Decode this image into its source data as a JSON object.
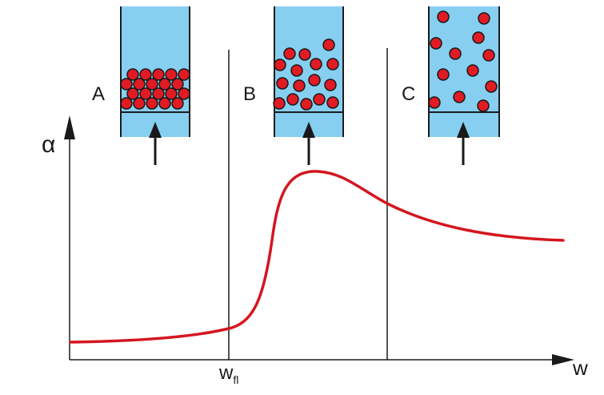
{
  "labels": {
    "y_axis": "α",
    "x_axis": "w",
    "wfl_main": "w",
    "wfl_sub": "fl"
  },
  "panels": [
    {
      "id": "A",
      "label": "A",
      "state": "fixed bed"
    },
    {
      "id": "B",
      "label": "B",
      "state": "fluidized bed"
    },
    {
      "id": "C",
      "label": "C",
      "state": "dilute"
    }
  ],
  "colors": {
    "fluid": "#87cff1",
    "particle": "#e01b24",
    "curve": "#d4161f",
    "lines": "#1a1a1a"
  }
}
